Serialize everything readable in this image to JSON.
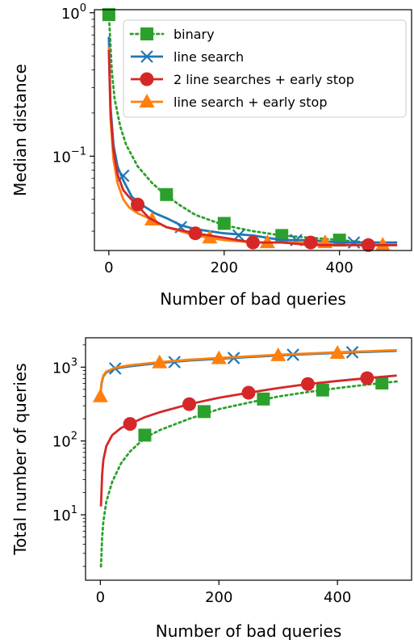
{
  "chart_data": [
    {
      "type": "line",
      "title": "",
      "xlabel": "Number of bad queries",
      "ylabel": "Median distance",
      "xlim": [
        -25,
        525
      ],
      "ylim": [
        0.022,
        1.05
      ],
      "yscale": "log",
      "x_ticks": [
        {
          "value": 0,
          "label": "0"
        },
        {
          "value": 200,
          "label": "200"
        },
        {
          "value": 400,
          "label": "400"
        }
      ],
      "y_ticks": [
        {
          "value": 1,
          "base": "10",
          "exp": "0"
        },
        {
          "value": 0.1,
          "base": "10",
          "exp": "−1"
        }
      ],
      "legend": {
        "location": "top-right"
      },
      "series": [
        {
          "name": "binary",
          "color": "#2ca02c",
          "linestyle": "dotted",
          "marker": "square",
          "x": [
            0,
            5,
            10,
            20,
            30,
            50,
            75,
            100,
            125,
            150,
            200,
            250,
            300,
            350,
            400,
            450,
            500
          ],
          "y": [
            1.0,
            0.4,
            0.25,
            0.16,
            0.12,
            0.085,
            0.065,
            0.053,
            0.045,
            0.039,
            0.033,
            0.03,
            0.028,
            0.027,
            0.026,
            0.025,
            0.025
          ],
          "marker_x": [
            0,
            100,
            200,
            300,
            400
          ],
          "marker_y": [
            0.97,
            0.054,
            0.034,
            0.028,
            0.026
          ]
        },
        {
          "name": "line search",
          "color": "#1f77b4",
          "linestyle": "solid",
          "marker": "x",
          "x": [
            0,
            3,
            8,
            15,
            25,
            40,
            60,
            80,
            100,
            125,
            150,
            200,
            250,
            300,
            350,
            400,
            450,
            500
          ],
          "y": [
            0.68,
            0.22,
            0.12,
            0.085,
            0.068,
            0.052,
            0.045,
            0.04,
            0.037,
            0.033,
            0.031,
            0.029,
            0.028,
            0.026,
            0.026,
            0.025,
            0.025,
            0.025
          ],
          "marker_x": [
            25,
            125,
            225,
            325,
            425
          ],
          "marker_y": [
            0.073,
            0.032,
            0.028,
            0.026,
            0.025
          ]
        },
        {
          "name": "2 line searches + early stop",
          "color": "#d62728",
          "linestyle": "solid",
          "marker": "circle",
          "x": [
            0,
            3,
            8,
            15,
            25,
            35,
            50,
            70,
            100,
            150,
            200,
            250,
            300,
            350,
            400,
            450,
            500
          ],
          "y": [
            0.55,
            0.2,
            0.11,
            0.075,
            0.058,
            0.052,
            0.045,
            0.037,
            0.032,
            0.029,
            0.027,
            0.025,
            0.025,
            0.024,
            0.024,
            0.024,
            0.024
          ],
          "marker_x": [
            50,
            150,
            250,
            350,
            450
          ],
          "marker_y": [
            0.046,
            0.029,
            0.025,
            0.025,
            0.024
          ]
        },
        {
          "name": "line search + early stop",
          "color": "#ff7f0e",
          "linestyle": "solid",
          "marker": "triangle",
          "x": [
            0,
            3,
            8,
            15,
            25,
            35,
            50,
            75,
            100,
            150,
            200,
            250,
            300,
            350,
            400,
            450,
            500
          ],
          "y": [
            0.58,
            0.18,
            0.095,
            0.065,
            0.05,
            0.044,
            0.04,
            0.036,
            0.032,
            0.028,
            0.026,
            0.025,
            0.025,
            0.025,
            0.024,
            0.024,
            0.024
          ],
          "marker_x": [
            75,
            175,
            275,
            375,
            475
          ],
          "marker_y": [
            0.036,
            0.027,
            0.025,
            0.025,
            0.024
          ]
        }
      ]
    },
    {
      "type": "line",
      "title": "",
      "xlabel": "Number of bad queries",
      "ylabel": "Total number of queries",
      "xlim": [
        -25,
        525
      ],
      "ylim": [
        1.3,
        2500
      ],
      "yscale": "log",
      "x_ticks": [
        {
          "value": 0,
          "label": "0"
        },
        {
          "value": 200,
          "label": "200"
        },
        {
          "value": 400,
          "label": "400"
        }
      ],
      "y_ticks": [
        {
          "value": 10,
          "base": "10",
          "exp": "1"
        },
        {
          "value": 100,
          "base": "10",
          "exp": "2"
        },
        {
          "value": 1000,
          "base": "10",
          "exp": "3"
        }
      ],
      "series": [
        {
          "name": "binary",
          "color": "#2ca02c",
          "linestyle": "dotted",
          "marker": "square",
          "x": [
            1,
            3,
            5,
            10,
            20,
            35,
            50,
            75,
            100,
            150,
            200,
            250,
            300,
            350,
            400,
            450,
            500
          ],
          "y": [
            2,
            5,
            8,
            15,
            28,
            50,
            72,
            110,
            140,
            200,
            270,
            330,
            400,
            460,
            520,
            580,
            640
          ],
          "marker_x": [
            75,
            175,
            275,
            375,
            475
          ],
          "marker_y": [
            120,
            250,
            370,
            490,
            610
          ]
        },
        {
          "name": "line search",
          "color": "#1f77b4",
          "linestyle": "solid",
          "marker": "x",
          "x": [
            0,
            2,
            5,
            10,
            25,
            50,
            100,
            150,
            200,
            250,
            300,
            350,
            400,
            450,
            500
          ],
          "y": [
            400,
            600,
            750,
            850,
            960,
            1030,
            1140,
            1230,
            1300,
            1370,
            1440,
            1500,
            1560,
            1610,
            1660
          ],
          "marker_x": [
            25,
            125,
            225,
            325,
            425
          ],
          "marker_y": [
            960,
            1170,
            1330,
            1470,
            1590
          ]
        },
        {
          "name": "2 line searches + early stop",
          "color": "#d62728",
          "linestyle": "solid",
          "marker": "circle",
          "x": [
            1,
            3,
            5,
            10,
            20,
            35,
            50,
            75,
            100,
            150,
            200,
            250,
            300,
            350,
            400,
            450,
            500
          ],
          "y": [
            13,
            35,
            55,
            85,
            120,
            150,
            170,
            210,
            245,
            315,
            385,
            450,
            520,
            590,
            650,
            710,
            770
          ],
          "marker_x": [
            50,
            150,
            250,
            350,
            450
          ],
          "marker_y": [
            170,
            315,
            450,
            590,
            710
          ]
        },
        {
          "name": "line search + early stop",
          "color": "#ff7f0e",
          "linestyle": "solid",
          "marker": "triangle",
          "x": [
            0,
            2,
            5,
            10,
            25,
            50,
            100,
            150,
            200,
            250,
            300,
            350,
            400,
            450,
            500
          ],
          "y": [
            420,
            620,
            770,
            870,
            980,
            1060,
            1170,
            1260,
            1330,
            1400,
            1470,
            1530,
            1590,
            1640,
            1700
          ],
          "marker_x": [
            0,
            100,
            200,
            300,
            400
          ],
          "marker_y": [
            400,
            1150,
            1310,
            1440,
            1550
          ]
        }
      ]
    }
  ]
}
